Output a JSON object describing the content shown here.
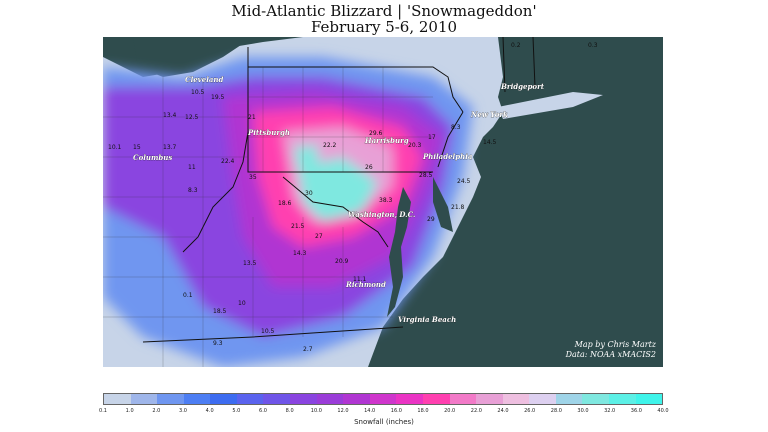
{
  "title_line1": "Mid-Atlantic Blizzard | 'Snowmageddon'",
  "title_line2": "February 5-6, 2010",
  "credit_line1": "Map by Chris Martz",
  "credit_line2": "Data: NOAA xMACIS2",
  "legend": {
    "label": "Snowfall (inches)",
    "ticks": [
      "0.1",
      "1.0",
      "2.0",
      "3.0",
      "4.0",
      "5.0",
      "6.0",
      "8.0",
      "10.0",
      "12.0",
      "14.0",
      "16.0",
      "18.0",
      "20.0",
      "22.0",
      "24.0",
      "26.0",
      "28.0",
      "30.0",
      "32.0",
      "36.0",
      "40.0"
    ],
    "colors": [
      "#c7d4e8",
      "#9fb6ea",
      "#6f96f0",
      "#4d7ef3",
      "#3d6cf0",
      "#5a63ee",
      "#6f55e8",
      "#8a44e0",
      "#9a3cd8",
      "#b036d2",
      "#cf36cc",
      "#ea34c4",
      "#ff40b0",
      "#f27ac8",
      "#e8a0d6",
      "#eebfe0",
      "#ddd0f0",
      "#9fd4e8",
      "#7fe8e0",
      "#5cf0e6",
      "#3ff4ea"
    ]
  },
  "cities": [
    {
      "name": "Cleveland"
    },
    {
      "name": "Pittsburgh"
    },
    {
      "name": "Columbus"
    },
    {
      "name": "Harrisburg"
    },
    {
      "name": "Philadelphia"
    },
    {
      "name": "New York"
    },
    {
      "name": "Bridgeport"
    },
    {
      "name": "Washington, D.C."
    },
    {
      "name": "Richmond"
    },
    {
      "name": "Virginia Beach"
    }
  ],
  "values": [
    {
      "v": "10.1"
    },
    {
      "v": "15"
    },
    {
      "v": "13.7"
    },
    {
      "v": "11"
    },
    {
      "v": "8.3"
    },
    {
      "v": "12.5"
    },
    {
      "v": "13.4"
    },
    {
      "v": "19.5"
    },
    {
      "v": "10.5"
    },
    {
      "v": "21"
    },
    {
      "v": "18.6"
    },
    {
      "v": "22.4"
    },
    {
      "v": "35"
    },
    {
      "v": "22.2"
    },
    {
      "v": "26"
    },
    {
      "v": "29.6"
    },
    {
      "v": "20.3"
    },
    {
      "v": "17"
    },
    {
      "v": "28.5"
    },
    {
      "v": "24.5"
    },
    {
      "v": "21.8"
    },
    {
      "v": "29"
    },
    {
      "v": "14.5"
    },
    {
      "v": "8.3"
    },
    {
      "v": "30"
    },
    {
      "v": "38.3"
    },
    {
      "v": "21.5"
    },
    {
      "v": "27"
    },
    {
      "v": "20.9"
    },
    {
      "v": "13.5"
    },
    {
      "v": "14.3"
    },
    {
      "v": "11.1"
    },
    {
      "v": "18.5"
    },
    {
      "v": "10"
    },
    {
      "v": "10.5"
    },
    {
      "v": "9.3"
    },
    {
      "v": "2.7"
    },
    {
      "v": "0.2"
    },
    {
      "v": "0.1"
    },
    {
      "v": "0.3"
    }
  ]
}
